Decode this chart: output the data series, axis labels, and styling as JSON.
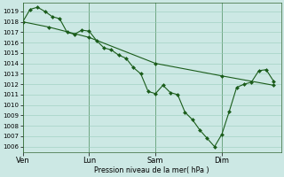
{
  "ylabel": "Pression niveau de la mer( hPa )",
  "ylim": [
    1005.5,
    1019.8
  ],
  "yticks": [
    1006,
    1007,
    1008,
    1009,
    1010,
    1011,
    1012,
    1013,
    1014,
    1015,
    1016,
    1017,
    1018,
    1019
  ],
  "bg_color": "#cce8e4",
  "grid_color": "#99ccbb",
  "line_color": "#1a5c1a",
  "marker_color": "#1a5c1a",
  "xtick_labels": [
    "Ven",
    "Lun",
    "Sam",
    "Dim"
  ],
  "xtick_positions": [
    0,
    36,
    72,
    108
  ],
  "xlim": [
    0,
    140
  ],
  "series1_x": [
    0,
    4,
    8,
    12,
    16,
    20,
    24,
    28,
    32,
    36,
    40,
    44,
    48,
    52,
    56,
    60,
    64,
    68,
    72,
    76,
    80,
    84,
    88,
    92,
    96,
    100,
    104,
    108,
    112,
    116,
    120,
    124,
    128,
    132,
    136
  ],
  "series1_y": [
    1018.0,
    1019.2,
    1019.4,
    1019.0,
    1018.5,
    1018.3,
    1017.0,
    1016.8,
    1017.2,
    1017.1,
    1016.2,
    1015.5,
    1015.3,
    1014.8,
    1014.5,
    1013.6,
    1013.0,
    1011.3,
    1011.1,
    1011.9,
    1011.2,
    1011.0,
    1009.3,
    1008.6,
    1007.6,
    1006.8,
    1006.0,
    1007.2,
    1009.4,
    1011.7,
    1012.0,
    1012.2,
    1013.3,
    1013.4,
    1012.3
  ],
  "series2_x": [
    0,
    14,
    36,
    72,
    108,
    136
  ],
  "series2_y": [
    1018.0,
    1017.5,
    1016.5,
    1014.0,
    1012.8,
    1011.9
  ],
  "n_points": 35
}
